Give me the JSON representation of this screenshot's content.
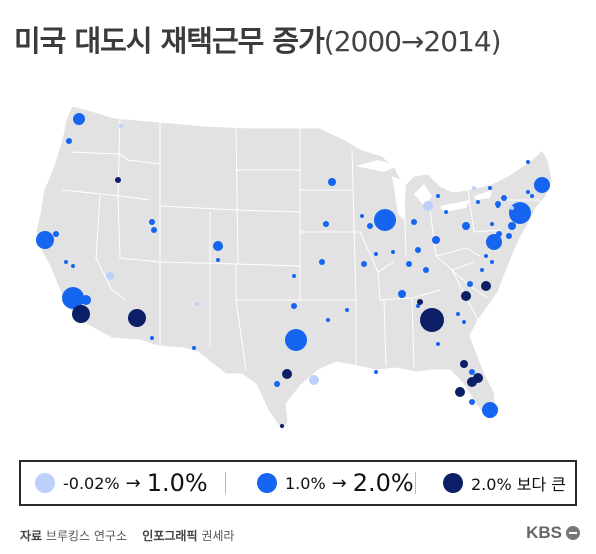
{
  "title": {
    "main": "미국 대도시 재택근무 증가",
    "sub": "(2000→2014)"
  },
  "legend": [
    {
      "label_from": "-0.02%",
      "arrow": "→",
      "label_to": "1.0%",
      "color": "#bcd0fb"
    },
    {
      "label_from": "1.0%",
      "arrow": "→",
      "label_to": "2.0%",
      "color": "#1565f0"
    },
    {
      "label": "2.0% 보다 큰",
      "color": "#0c1f66"
    }
  ],
  "footer": {
    "source_label": "자료",
    "source_text": "브루킹스 연구소",
    "graphic_label": "인포그래픽",
    "graphic_text": "권세라"
  },
  "brand": "KBS",
  "colors": {
    "land": "#e2e2e2",
    "border": "#ffffff",
    "low": "#bcd0fb",
    "mid": "#1565f0",
    "high": "#0c1f66"
  }
}
